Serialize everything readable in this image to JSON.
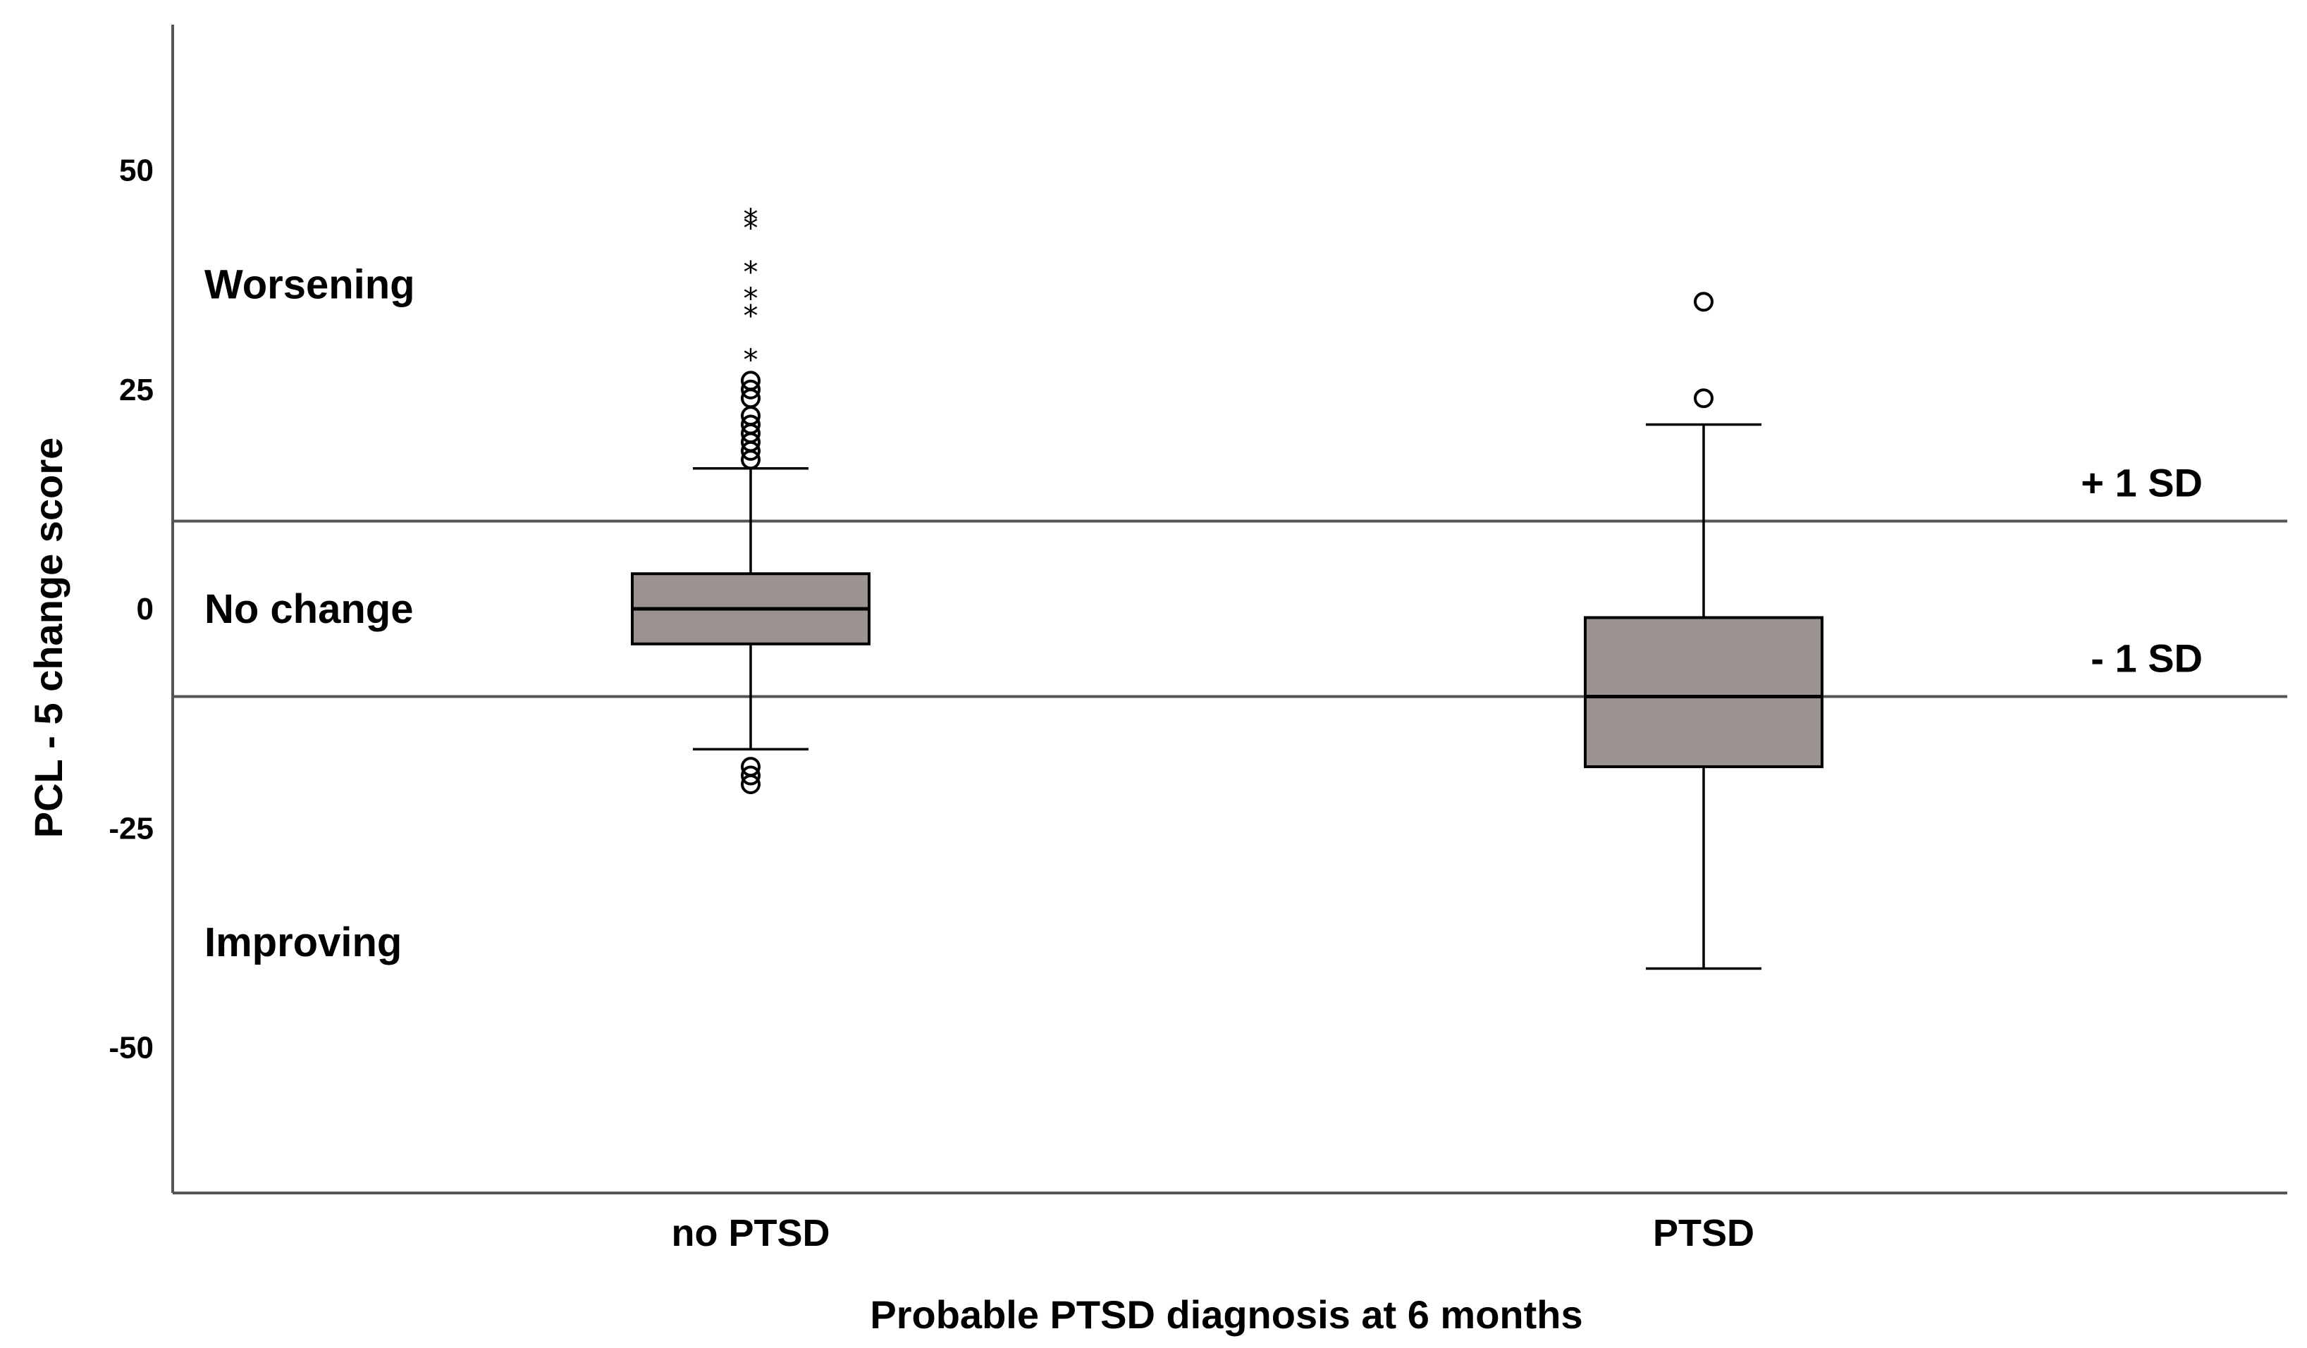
{
  "chart_data": {
    "type": "boxplot",
    "title": "",
    "xlabel": "Probable PTSD diagnosis at 6 months",
    "ylabel": "PCL - 5 change score",
    "ylim": [
      -67,
      67
    ],
    "yticks": [
      50,
      25,
      0,
      -25,
      -50
    ],
    "ytick_labels": [
      "50",
      "25",
      "0",
      "-25",
      "-50"
    ],
    "categories": [
      "no PTSD",
      "PTSD"
    ],
    "boxes": [
      {
        "name": "no PTSD",
        "whisker_low": -16,
        "q1": -4,
        "median": 0,
        "q3": 4,
        "whisker_high": 16,
        "outliers_circle": [
          17,
          18,
          19,
          20,
          21,
          22,
          24,
          25,
          26,
          -18,
          -19,
          -20
        ],
        "outliers_extreme": [
          29,
          34,
          36,
          39,
          44,
          45
        ]
      },
      {
        "name": "PTSD",
        "whisker_low": -41,
        "q1": -18,
        "median": -10,
        "q3": -1,
        "whisker_high": 21,
        "outliers_circle": [
          24,
          35
        ],
        "outliers_extreme": []
      }
    ],
    "reference_lines": [
      {
        "value": 10,
        "label": "+ 1 SD"
      },
      {
        "value": -10,
        "label": "-  1 SD"
      }
    ],
    "regions": [
      {
        "label": "Worsening",
        "value": 37
      },
      {
        "label": "No change",
        "value": 0
      },
      {
        "label": "Improving",
        "value": -38
      }
    ]
  }
}
